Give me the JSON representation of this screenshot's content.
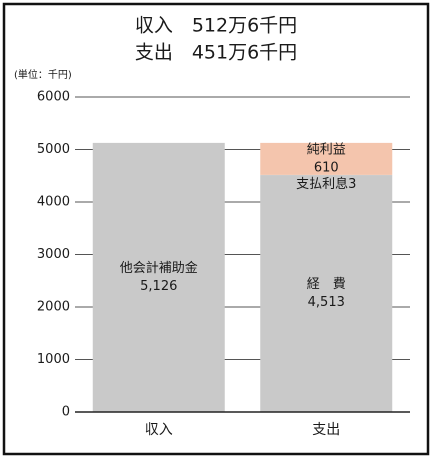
{
  "chart_data": {
    "type": "stacked-bar",
    "title": "収入　512万6千円",
    "subtitle": "支出　451万6千円",
    "y_label": "(単位：千円)",
    "categories": [
      "収入",
      "支出"
    ],
    "series": [
      {
        "name": "他会計補助金",
        "color": "#c9c9c9",
        "values": [
          5126,
          null
        ],
        "value_labels": [
          "5,126",
          null
        ]
      },
      {
        "name": "経　費",
        "color": "#c9c9c9",
        "values": [
          null,
          4513
        ],
        "value_labels": [
          null,
          "4,513"
        ]
      },
      {
        "name": "支払利息",
        "color": "#c9c9c9",
        "values": [
          null,
          3
        ]
      },
      {
        "name": "純利益",
        "color": "#f4c5ad",
        "values": [
          null,
          610
        ]
      }
    ],
    "ylim": [
      0,
      6000
    ],
    "yticks": [
      0,
      1000,
      2000,
      3000,
      4000,
      5000,
      6000
    ],
    "grid": true
  }
}
